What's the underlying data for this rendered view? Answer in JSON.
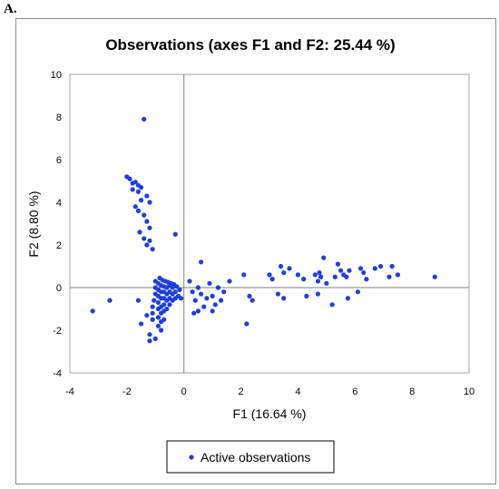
{
  "panel_label": "A.",
  "chart_data": {
    "type": "scatter",
    "title": "Observations (axes F1 and F2: 25.44 %)",
    "xlabel": "F1 (16.64 %)",
    "ylabel": "F2 (8.80 %)",
    "xlim": [
      -4,
      10
    ],
    "ylim": [
      -4,
      10
    ],
    "xticks": [
      -4,
      -2,
      0,
      2,
      4,
      6,
      8,
      10
    ],
    "yticks": [
      -4,
      -2,
      0,
      2,
      4,
      6,
      8,
      10
    ],
    "grid": false,
    "legend": {
      "position": "bottom",
      "entries": [
        "Active observations"
      ]
    },
    "series": [
      {
        "name": "Active observations",
        "color": "#1f3fd8",
        "points": [
          [
            -1.4,
            7.9
          ],
          [
            -2.0,
            5.2
          ],
          [
            -1.9,
            5.1
          ],
          [
            -1.8,
            4.9
          ],
          [
            -1.7,
            4.95
          ],
          [
            -1.6,
            4.8
          ],
          [
            -1.5,
            4.7
          ],
          [
            -1.6,
            4.5
          ],
          [
            -1.8,
            4.6
          ],
          [
            -1.3,
            4.3
          ],
          [
            -1.5,
            4.1
          ],
          [
            -1.2,
            4.0
          ],
          [
            -1.7,
            3.8
          ],
          [
            -1.6,
            3.6
          ],
          [
            -1.4,
            3.4
          ],
          [
            -1.3,
            3.1
          ],
          [
            -1.2,
            2.8
          ],
          [
            -1.55,
            2.6
          ],
          [
            -1.4,
            2.3
          ],
          [
            -1.2,
            2.2
          ],
          [
            -1.3,
            2.0
          ],
          [
            -1.1,
            1.8
          ],
          [
            -0.3,
            2.5
          ],
          [
            -3.2,
            -1.1
          ],
          [
            -2.6,
            -0.6
          ],
          [
            -1.6,
            -0.6
          ],
          [
            -1.5,
            -1.7
          ],
          [
            -1.3,
            -1.3
          ],
          [
            -1.2,
            -2.2
          ],
          [
            -1.2,
            -2.5
          ],
          [
            -1.0,
            -2.4
          ],
          [
            -0.8,
            -2.0
          ],
          [
            -0.7,
            -1.5
          ],
          [
            -1.1,
            -1.5
          ],
          [
            -1.1,
            -1.2
          ],
          [
            -1.1,
            -0.9
          ],
          [
            -1.05,
            -0.6
          ],
          [
            -1.0,
            -0.3
          ],
          [
            -1.0,
            0.0
          ],
          [
            -1.0,
            0.3
          ],
          [
            -0.9,
            -1.8
          ],
          [
            -0.9,
            -1.4
          ],
          [
            -0.9,
            -1.0
          ],
          [
            -0.9,
            -0.7
          ],
          [
            -0.9,
            -0.4
          ],
          [
            -0.9,
            -0.1
          ],
          [
            -0.9,
            0.2
          ],
          [
            -0.85,
            0.45
          ],
          [
            -0.8,
            -1.6
          ],
          [
            -0.8,
            -1.2
          ],
          [
            -0.8,
            -0.9
          ],
          [
            -0.8,
            -0.5
          ],
          [
            -0.8,
            -0.2
          ],
          [
            -0.8,
            0.1
          ],
          [
            -0.75,
            0.35
          ],
          [
            -0.7,
            -1.1
          ],
          [
            -0.7,
            -0.8
          ],
          [
            -0.7,
            -0.5
          ],
          [
            -0.7,
            -0.2
          ],
          [
            -0.7,
            0.05
          ],
          [
            -0.65,
            0.3
          ],
          [
            -0.6,
            -1.0
          ],
          [
            -0.6,
            -0.6
          ],
          [
            -0.6,
            -0.3
          ],
          [
            -0.6,
            0.0
          ],
          [
            -0.55,
            0.25
          ],
          [
            -0.5,
            -0.8
          ],
          [
            -0.5,
            -0.5
          ],
          [
            -0.5,
            -0.2
          ],
          [
            -0.5,
            0.1
          ],
          [
            -0.45,
            0.2
          ],
          [
            -0.4,
            -0.6
          ],
          [
            -0.4,
            -0.3
          ],
          [
            -0.4,
            0.0
          ],
          [
            -0.35,
            0.15
          ],
          [
            -0.3,
            -0.5
          ],
          [
            -0.3,
            -0.2
          ],
          [
            -0.25,
            0.05
          ],
          [
            -0.2,
            -0.4
          ],
          [
            -0.15,
            -0.1
          ],
          [
            -0.1,
            -0.5
          ],
          [
            0.2,
            0.3
          ],
          [
            0.3,
            -0.2
          ],
          [
            0.4,
            -0.6
          ],
          [
            0.5,
            0.0
          ],
          [
            0.6,
            -0.3
          ],
          [
            0.35,
            -1.2
          ],
          [
            0.5,
            -1.1
          ],
          [
            0.7,
            -0.9
          ],
          [
            0.6,
            1.2
          ],
          [
            0.8,
            -0.5
          ],
          [
            0.9,
            0.2
          ],
          [
            1.0,
            -0.4
          ],
          [
            1.1,
            -0.8
          ],
          [
            1.2,
            0.0
          ],
          [
            1.0,
            -1.1
          ],
          [
            1.4,
            -0.2
          ],
          [
            1.6,
            0.3
          ],
          [
            1.3,
            -0.6
          ],
          [
            2.1,
            0.6
          ],
          [
            2.3,
            -0.4
          ],
          [
            2.4,
            -0.6
          ],
          [
            2.2,
            -1.7
          ],
          [
            3.0,
            0.6
          ],
          [
            3.1,
            0.4
          ],
          [
            3.3,
            -0.3
          ],
          [
            3.4,
            1.0
          ],
          [
            3.5,
            0.7
          ],
          [
            3.7,
            0.9
          ],
          [
            3.5,
            -0.5
          ],
          [
            4.0,
            0.6
          ],
          [
            4.2,
            0.4
          ],
          [
            4.3,
            -0.4
          ],
          [
            4.6,
            0.6
          ],
          [
            4.7,
            0.3
          ],
          [
            4.75,
            0.7
          ],
          [
            4.8,
            0.5
          ],
          [
            4.9,
            1.4
          ],
          [
            4.7,
            -0.3
          ],
          [
            5.0,
            0.2
          ],
          [
            5.3,
            0.5
          ],
          [
            5.4,
            1.1
          ],
          [
            5.5,
            0.8
          ],
          [
            5.6,
            0.6
          ],
          [
            5.7,
            0.5
          ],
          [
            5.8,
            0.8
          ],
          [
            5.2,
            -0.8
          ],
          [
            5.75,
            -0.5
          ],
          [
            6.2,
            0.9
          ],
          [
            6.3,
            0.7
          ],
          [
            6.4,
            0.4
          ],
          [
            6.1,
            -0.2
          ],
          [
            6.7,
            0.9
          ],
          [
            6.9,
            1.0
          ],
          [
            7.2,
            0.5
          ],
          [
            7.3,
            1.0
          ],
          [
            7.5,
            0.6
          ],
          [
            8.8,
            0.5
          ]
        ]
      }
    ]
  }
}
